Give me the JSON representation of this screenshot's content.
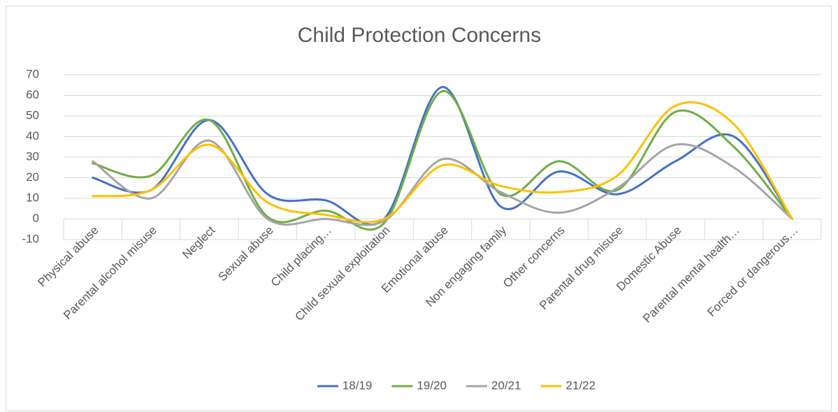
{
  "chart_data": {
    "type": "line",
    "title": "Child Protection Concerns",
    "categories": [
      "Physical abuse",
      "Parental alcohol misuse",
      "Neglect",
      "Sexual abuse",
      "Child placing…",
      "Child sexual exploitation",
      "Emotional abuse",
      "Non engaging family",
      "Other concerns",
      "Parental drug misuse",
      "Domestic Abuse",
      "Parental mental health…",
      "Forced or dangerous…"
    ],
    "series": [
      {
        "name": "18/19",
        "color": "#4472c4",
        "values": [
          20,
          14,
          48,
          12,
          9,
          0,
          64,
          6,
          23,
          12,
          28,
          40,
          0
        ]
      },
      {
        "name": "19/20",
        "color": "#70ad47",
        "values": [
          27,
          21,
          48,
          1,
          4,
          -2,
          62,
          12,
          28,
          14,
          52,
          35,
          0
        ]
      },
      {
        "name": "20/21",
        "color": "#a5a5a5",
        "values": [
          28,
          10,
          38,
          0,
          0,
          -1,
          29,
          13,
          3,
          15,
          36,
          25,
          0
        ]
      },
      {
        "name": "21/22",
        "color": "#ffc000",
        "values": [
          11,
          14,
          36,
          8,
          2,
          0,
          26,
          16,
          13,
          21,
          55,
          46,
          0
        ]
      }
    ],
    "ylim": [
      -10,
      70
    ],
    "yticks": [
      -10,
      0,
      10,
      20,
      30,
      40,
      50,
      60,
      70
    ],
    "grid": true,
    "smooth": true,
    "legend": "bottom"
  }
}
